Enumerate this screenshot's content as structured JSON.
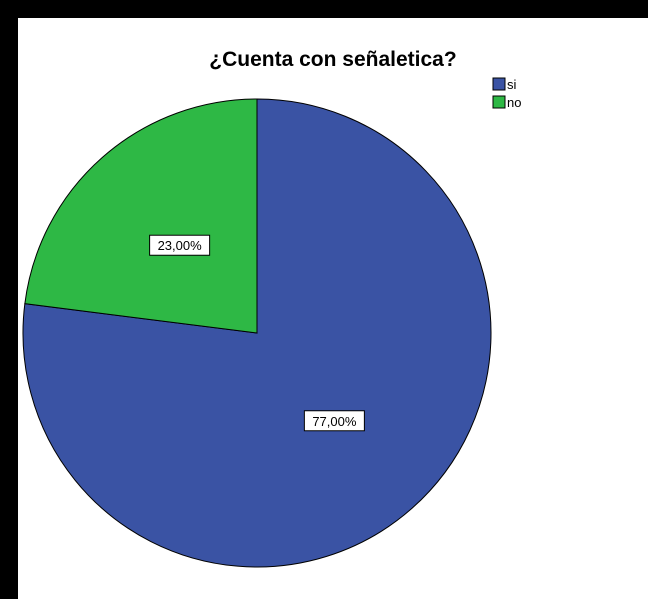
{
  "chart_data": {
    "type": "pie",
    "title": "¿Cuenta con señaletica?",
    "legend_position": "top-right",
    "categories": [
      "si",
      "no"
    ],
    "values": [
      77.0,
      23.0
    ],
    "data_labels": [
      "77,00%",
      "23,00%"
    ],
    "colors": [
      "#3a53a4",
      "#2eb845"
    ],
    "start_angle": "12 o'clock",
    "direction": "clockwise"
  }
}
